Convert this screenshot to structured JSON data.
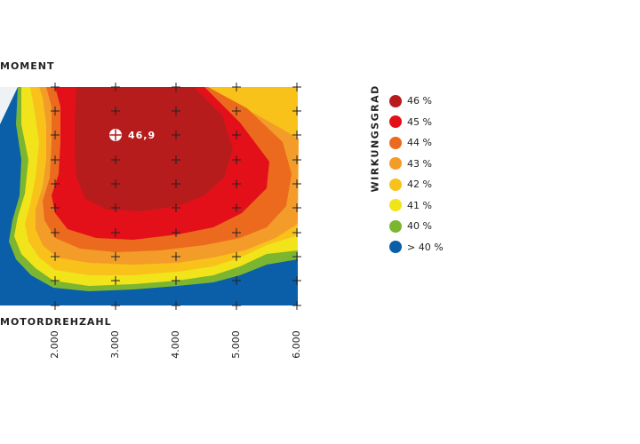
{
  "chart_data": {
    "type": "contour",
    "ylabel": "MOMENT",
    "xlabel": "MOTORDREHZAHL",
    "x_ticks": [
      "2.000",
      "3.000",
      "4.000",
      "5.000",
      "6.000"
    ],
    "xlim": [
      1100,
      6000
    ],
    "legend_title": "WIRKUNGSGRAD",
    "legend": [
      {
        "label": "46 %",
        "color": "#b71c1c"
      },
      {
        "label": "45 %",
        "color": "#e3101a"
      },
      {
        "label": "44 %",
        "color": "#ec6a1e"
      },
      {
        "label": "43 %",
        "color": "#f39c2a"
      },
      {
        "label": "42 %",
        "color": "#f8c21a"
      },
      {
        "label": "41 %",
        "color": "#f1e41b"
      },
      {
        "label": "40 %",
        "color": "#7cb631"
      },
      {
        "label": "> 40 %",
        "color": "#0a5fa8"
      }
    ],
    "peak": {
      "x": 3000,
      "label": "46,9"
    },
    "background_color": "#eef2f4"
  }
}
